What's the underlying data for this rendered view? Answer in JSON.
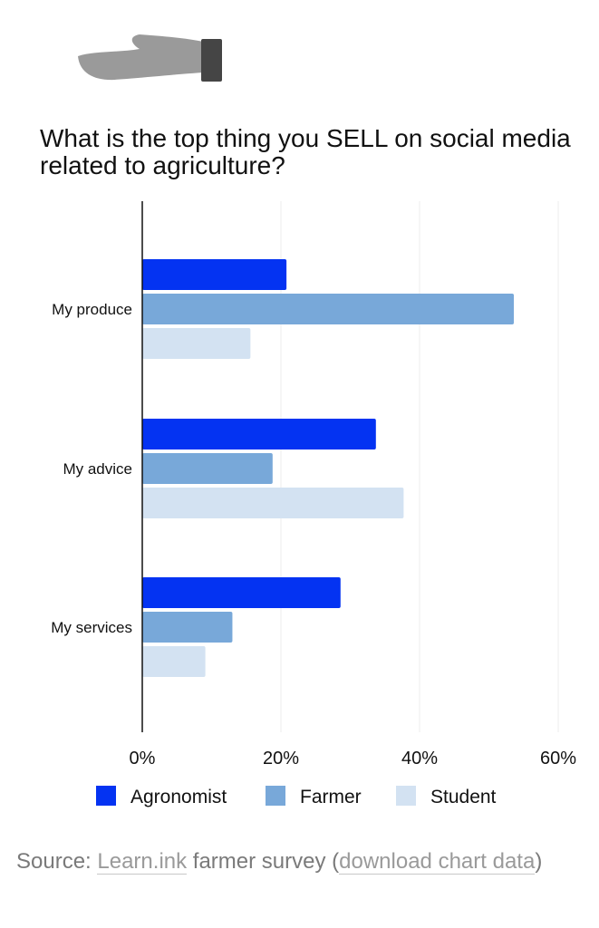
{
  "icons": {
    "header": "hand-icon"
  },
  "colors": {
    "agronomist": "#0433f2",
    "farmer": "#78a8d9",
    "student": "#d3e2f2",
    "grid": "#ececec",
    "axis": "#111111"
  },
  "chart_data": {
    "type": "bar",
    "orientation": "horizontal",
    "title": "What is the top thing you SELL on social media related to agriculture?",
    "categories": [
      "My produce",
      "My advice",
      "My services"
    ],
    "series": [
      {
        "name": "Agronomist",
        "values": [
          20.8,
          33.7,
          28.6
        ]
      },
      {
        "name": "Farmer",
        "values": [
          53.6,
          18.8,
          13.0
        ]
      },
      {
        "name": "Student",
        "values": [
          15.6,
          37.7,
          9.1
        ]
      }
    ],
    "xlim": [
      0,
      60
    ],
    "xticks": [
      "0%",
      "20%",
      "40%",
      "60%"
    ],
    "grid": true,
    "legend_position": "bottom"
  },
  "source": {
    "prefix": "Source: ",
    "link1": "Learn.ink",
    "middle": " farmer survey (",
    "link2": "download chart data",
    "suffix": ")"
  }
}
